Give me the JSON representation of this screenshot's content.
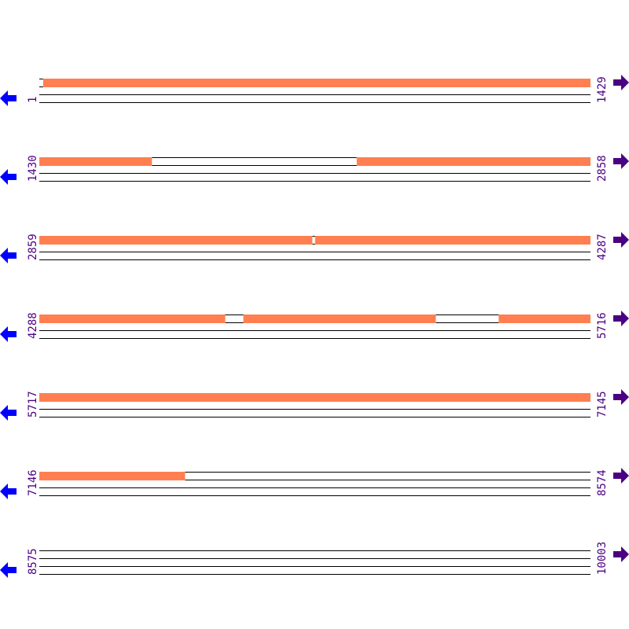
{
  "sequence": {
    "start": 1,
    "end": 10003,
    "bases_per_row": 1429
  },
  "rows": [
    {
      "start_label": "1",
      "end_label": "1429",
      "start": 1,
      "end": 1429
    },
    {
      "start_label": "1430",
      "end_label": "2858",
      "start": 1430,
      "end": 2858
    },
    {
      "start_label": "2859",
      "end_label": "4287",
      "start": 2859,
      "end": 4287
    },
    {
      "start_label": "4288",
      "end_label": "5716",
      "start": 4288,
      "end": 5716
    },
    {
      "start_label": "5717",
      "end_label": "7145",
      "start": 5717,
      "end": 7145
    },
    {
      "start_label": "7146",
      "end_label": "8574",
      "start": 7146,
      "end": 8574
    },
    {
      "start_label": "8575",
      "end_label": "10003",
      "start": 8575,
      "end": 10003
    }
  ],
  "covered_regions": [
    [
      11,
      1721
    ],
    [
      2253,
      3566
    ],
    [
      3574,
      4769
    ],
    [
      4817,
      5315
    ],
    [
      5479,
      7523
    ]
  ],
  "icons": {
    "left": "arrow-left-icon",
    "right": "arrow-right-icon"
  },
  "colors": {
    "covered": "#FF7F50",
    "left_arrow": "#0000FF",
    "right_arrow": "#4B0082",
    "label": "#4B0082",
    "line": "#000000"
  }
}
